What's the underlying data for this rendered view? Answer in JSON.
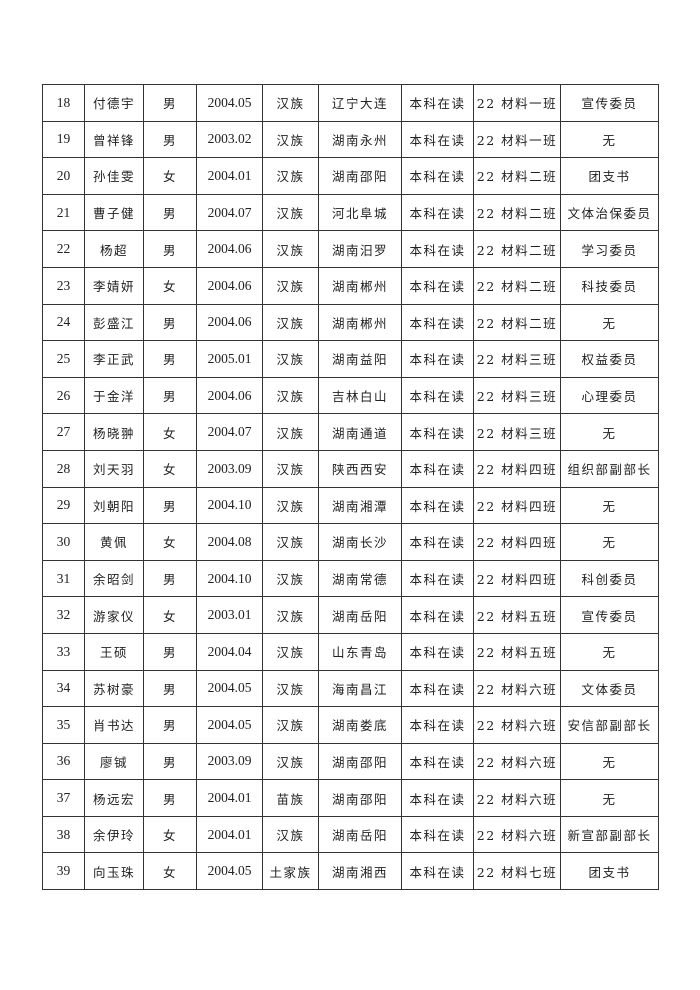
{
  "table": {
    "rows": [
      [
        "18",
        "付德宇",
        "男",
        "2004.05",
        "汉族",
        "辽宁大连",
        "本科在读",
        "22 材料一班",
        "宣传委员"
      ],
      [
        "19",
        "曾祥锋",
        "男",
        "2003.02",
        "汉族",
        "湖南永州",
        "本科在读",
        "22 材料一班",
        "无"
      ],
      [
        "20",
        "孙佳雯",
        "女",
        "2004.01",
        "汉族",
        "湖南邵阳",
        "本科在读",
        "22 材料二班",
        "团支书"
      ],
      [
        "21",
        "曹子健",
        "男",
        "2004.07",
        "汉族",
        "河北阜城",
        "本科在读",
        "22 材料二班",
        "文体治保委员"
      ],
      [
        "22",
        "杨超",
        "男",
        "2004.06",
        "汉族",
        "湖南汨罗",
        "本科在读",
        "22 材料二班",
        "学习委员"
      ],
      [
        "23",
        "李婧妍",
        "女",
        "2004.06",
        "汉族",
        "湖南郴州",
        "本科在读",
        "22 材料二班",
        "科技委员"
      ],
      [
        "24",
        "彭盛江",
        "男",
        "2004.06",
        "汉族",
        "湖南郴州",
        "本科在读",
        "22 材料二班",
        "无"
      ],
      [
        "25",
        "李正武",
        "男",
        "2005.01",
        "汉族",
        "湖南益阳",
        "本科在读",
        "22 材料三班",
        "权益委员"
      ],
      [
        "26",
        "于金洋",
        "男",
        "2004.06",
        "汉族",
        "吉林白山",
        "本科在读",
        "22 材料三班",
        "心理委员"
      ],
      [
        "27",
        "杨晓翀",
        "女",
        "2004.07",
        "汉族",
        "湖南通道",
        "本科在读",
        "22 材料三班",
        "无"
      ],
      [
        "28",
        "刘天羽",
        "女",
        "2003.09",
        "汉族",
        "陕西西安",
        "本科在读",
        "22 材料四班",
        "组织部副部长"
      ],
      [
        "29",
        "刘朝阳",
        "男",
        "2004.10",
        "汉族",
        "湖南湘潭",
        "本科在读",
        "22 材料四班",
        "无"
      ],
      [
        "30",
        "黄佩",
        "女",
        "2004.08",
        "汉族",
        "湖南长沙",
        "本科在读",
        "22 材料四班",
        "无"
      ],
      [
        "31",
        "余昭剑",
        "男",
        "2004.10",
        "汉族",
        "湖南常德",
        "本科在读",
        "22 材料四班",
        "科创委员"
      ],
      [
        "32",
        "游家仪",
        "女",
        "2003.01",
        "汉族",
        "湖南岳阳",
        "本科在读",
        "22 材料五班",
        "宣传委员"
      ],
      [
        "33",
        "王硕",
        "男",
        "2004.04",
        "汉族",
        "山东青岛",
        "本科在读",
        "22 材料五班",
        "无"
      ],
      [
        "34",
        "苏树豪",
        "男",
        "2004.05",
        "汉族",
        "海南昌江",
        "本科在读",
        "22 材料六班",
        "文体委员"
      ],
      [
        "35",
        "肖书达",
        "男",
        "2004.05",
        "汉族",
        "湖南娄底",
        "本科在读",
        "22 材料六班",
        "安信部副部长"
      ],
      [
        "36",
        "廖铖",
        "男",
        "2003.09",
        "汉族",
        "湖南邵阳",
        "本科在读",
        "22 材料六班",
        "无"
      ],
      [
        "37",
        "杨远宏",
        "男",
        "2004.01",
        "苗族",
        "湖南邵阳",
        "本科在读",
        "22 材料六班",
        "无"
      ],
      [
        "38",
        "余伊玲",
        "女",
        "2004.01",
        "汉族",
        "湖南岳阳",
        "本科在读",
        "22 材料六班",
        "新宣部副部长"
      ],
      [
        "39",
        "向玉珠",
        "女",
        "2004.05",
        "土家族",
        "湖南湘西",
        "本科在读",
        "22 材料七班",
        "团支书"
      ]
    ]
  }
}
